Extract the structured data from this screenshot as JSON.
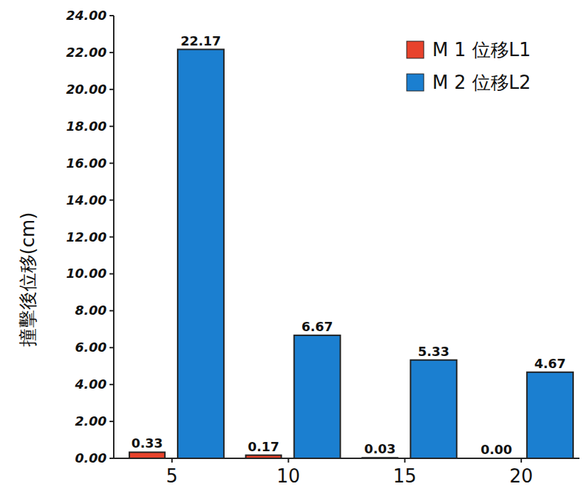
{
  "chart_data": {
    "type": "bar",
    "y_label": "撞擊後位移(cm)",
    "categories": [
      "5",
      "10",
      "15",
      "20"
    ],
    "series": [
      {
        "name": "M 1 位移L1",
        "color": "#e8432c",
        "values": [
          0.33,
          0.17,
          0.03,
          0.0
        ],
        "value_labels": [
          "0.33",
          "0.17",
          "0.03",
          "0.00"
        ]
      },
      {
        "name": "M 2 位移L2",
        "color": "#1b7fd0",
        "values": [
          22.17,
          6.67,
          5.33,
          4.67
        ],
        "value_labels": [
          "22.17",
          "6.67",
          "5.33",
          "4.67"
        ]
      }
    ],
    "ylim": [
      0,
      24
    ],
    "yticks": [
      {
        "value": 0,
        "label": "0.00"
      },
      {
        "value": 2,
        "label": "2.00"
      },
      {
        "value": 4,
        "label": "4.00"
      },
      {
        "value": 6,
        "label": "6.00"
      },
      {
        "value": 8,
        "label": "8.00"
      },
      {
        "value": 10,
        "label": "10.00"
      },
      {
        "value": 12,
        "label": "12.00"
      },
      {
        "value": 14,
        "label": "14.00"
      },
      {
        "value": 16,
        "label": "16.00"
      },
      {
        "value": 18,
        "label": "18.00"
      },
      {
        "value": 20,
        "label": "20.00"
      },
      {
        "value": 22,
        "label": "22.00"
      },
      {
        "value": 24,
        "label": "24.00"
      }
    ],
    "grid": false,
    "legend": "top-right",
    "data_labels": true
  }
}
